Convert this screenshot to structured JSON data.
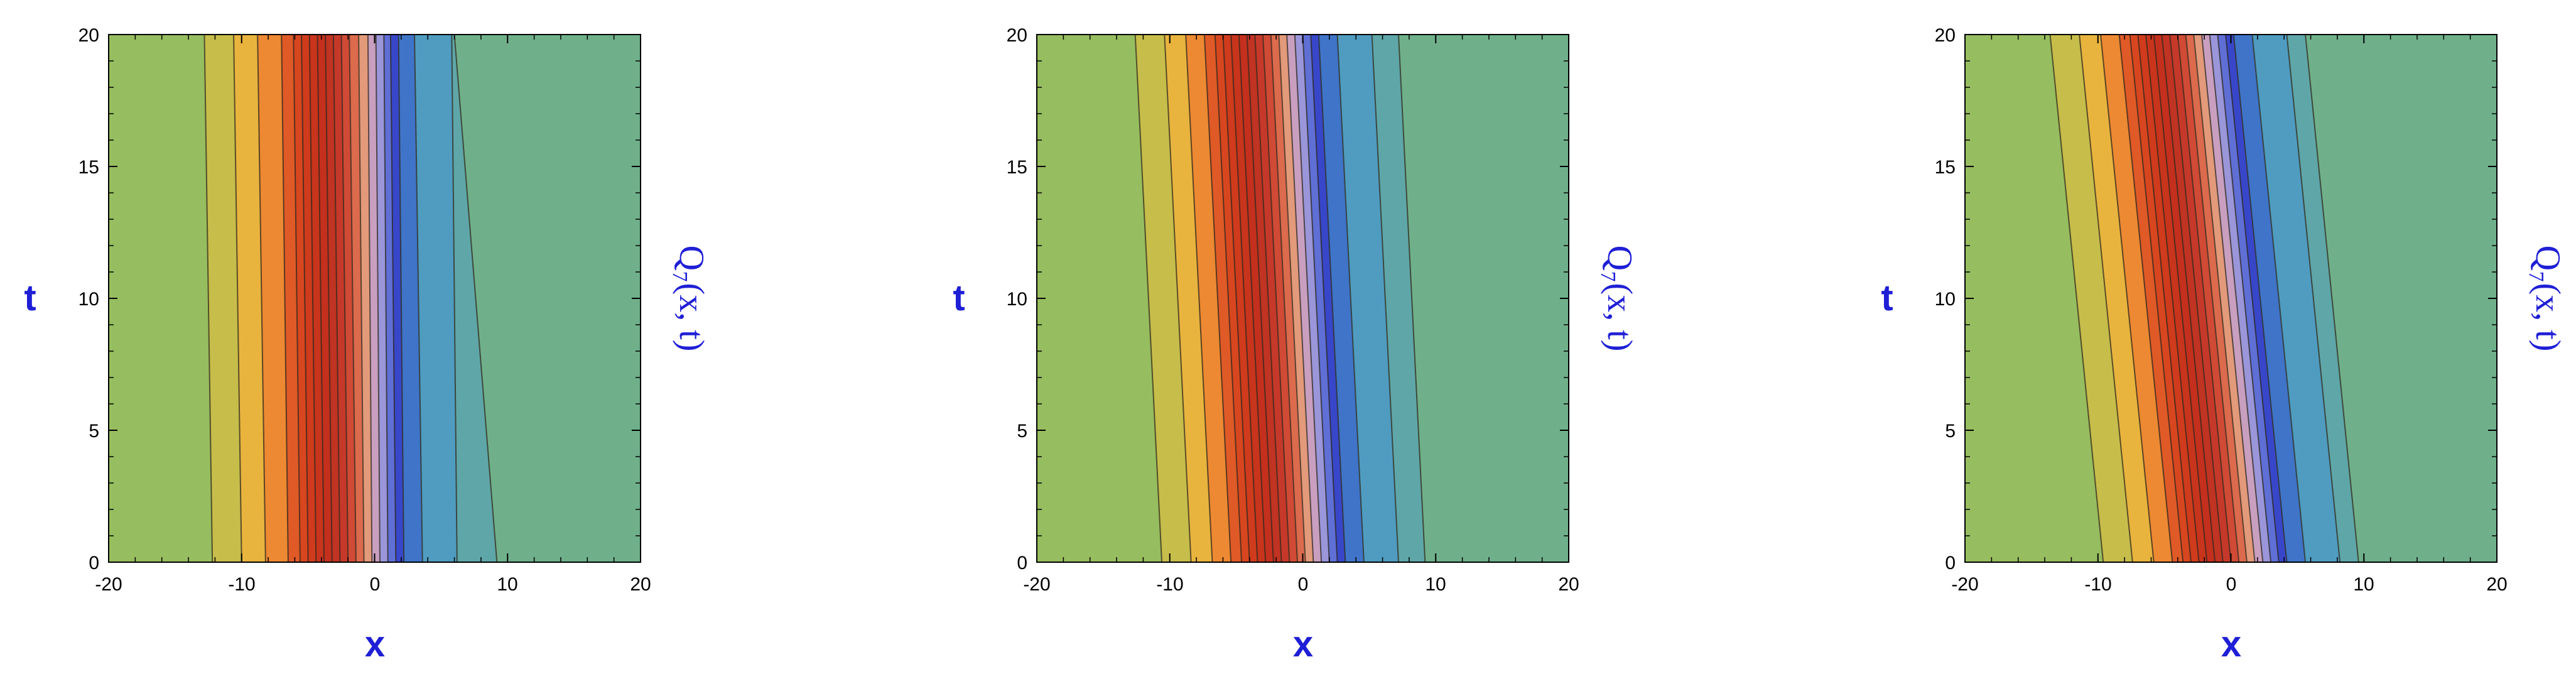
{
  "figure": {
    "label_color": "#1f1fd6",
    "band_colors": [
      "#96bd5f",
      "#c7bd4c",
      "#e9b43f",
      "#ec8630",
      "#dc4a23",
      "#c8321e",
      "#dd6a4b",
      "#e3a28c",
      "#7f8dd8",
      "#3a4fd2",
      "#2f7bc9",
      "#4e9cc0",
      "#6fb08a"
    ]
  },
  "chart_data": [
    {
      "type": "contour",
      "xlabel": "x",
      "ylabel": "t",
      "colorbar_label": "Q₇(x, t)",
      "xlim": [
        -20,
        20
      ],
      "ylim": [
        0,
        20
      ],
      "x_ticks": [
        "-20",
        "-10",
        "0",
        "10",
        "20"
      ],
      "y_ticks": [
        "0",
        "5",
        "10",
        "15",
        "20"
      ],
      "contours_x_at_t0": [
        -12.2,
        -10.0,
        -8.2,
        -6.5,
        -5.6,
        -5.0,
        -4.4,
        -3.8,
        -3.2,
        -2.6,
        -2.0,
        -1.4,
        -0.8,
        -0.2,
        0.4,
        1.0,
        1.6,
        2.2,
        3.6,
        6.2,
        9.2
      ],
      "contours_x_at_t20": [
        -12.8,
        -10.6,
        -8.8,
        -7.0,
        -6.1,
        -5.5,
        -4.9,
        -4.3,
        -3.7,
        -3.1,
        -2.5,
        -1.9,
        -1.2,
        -0.5,
        0.1,
        0.7,
        1.2,
        1.8,
        3.0,
        5.8,
        6.0
      ]
    },
    {
      "type": "contour",
      "xlabel": "x",
      "ylabel": "t",
      "colorbar_label": "Q₇(x, t)",
      "xlim": [
        -20,
        20
      ],
      "ylim": [
        0,
        20
      ],
      "x_ticks": [
        "-20",
        "-10",
        "0",
        "10",
        "20"
      ],
      "y_ticks": [
        "0",
        "5",
        "10",
        "15",
        "20"
      ],
      "contours_x_at_t0": [
        -10.6,
        -8.4,
        -6.8,
        -5.4,
        -4.6,
        -4.0,
        -3.4,
        -2.8,
        -2.2,
        -1.6,
        -1.0,
        -0.4,
        0.2,
        0.8,
        1.4,
        2.0,
        2.6,
        3.2,
        4.6,
        7.2,
        9.2
      ],
      "contours_x_at_t20": [
        -12.6,
        -10.4,
        -8.8,
        -7.4,
        -6.6,
        -6.0,
        -5.4,
        -4.8,
        -4.2,
        -3.6,
        -3.0,
        -2.4,
        -1.8,
        -1.2,
        -0.6,
        0.0,
        0.6,
        1.2,
        2.6,
        5.2,
        7.2
      ]
    },
    {
      "type": "contour",
      "xlabel": "x",
      "ylabel": "t",
      "colorbar_label": "Q₇(x, t)",
      "xlim": [
        -20,
        20
      ],
      "ylim": [
        0,
        20
      ],
      "x_ticks": [
        "-20",
        "-10",
        "0",
        "10",
        "20"
      ],
      "y_ticks": [
        "0",
        "5",
        "10",
        "15",
        "20"
      ],
      "contours_x_at_t0": [
        -9.6,
        -7.4,
        -5.8,
        -4.4,
        -3.6,
        -3.0,
        -2.4,
        -1.8,
        -1.2,
        -0.6,
        0.0,
        0.6,
        1.2,
        1.8,
        2.4,
        3.0,
        3.6,
        4.2,
        5.6,
        8.2,
        9.6
      ],
      "contours_x_at_t20": [
        -13.6,
        -11.4,
        -9.8,
        -8.4,
        -7.6,
        -7.0,
        -6.4,
        -5.8,
        -5.2,
        -4.6,
        -4.0,
        -3.4,
        -2.8,
        -2.2,
        -1.6,
        -1.0,
        -0.4,
        0.2,
        1.6,
        4.2,
        5.6
      ]
    }
  ]
}
